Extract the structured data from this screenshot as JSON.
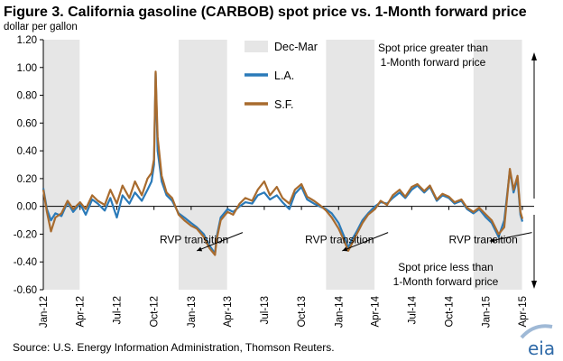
{
  "chart_data": {
    "type": "line",
    "title": "Figure 3. California gasoline (CARBOB) spot price vs. 1-Month forward price",
    "ylabel": "dollar per gallon",
    "xlabel": "",
    "ylim": [
      -0.6,
      1.2
    ],
    "yticks": [
      "1.20",
      "1.00",
      "0.80",
      "0.60",
      "0.40",
      "0.20",
      "0.00",
      "-0.20",
      "-0.40",
      "-0.60"
    ],
    "x_range": [
      "2012-01-01",
      "2015-04-30"
    ],
    "xticks": [
      {
        "label": "Jan-12",
        "date": "2012-01-01"
      },
      {
        "label": "Apr-12",
        "date": "2012-04-01"
      },
      {
        "label": "Jul-12",
        "date": "2012-07-01"
      },
      {
        "label": "Oct-12",
        "date": "2012-10-01"
      },
      {
        "label": "Jan-13",
        "date": "2013-01-01"
      },
      {
        "label": "Apr-13",
        "date": "2013-04-01"
      },
      {
        "label": "Jul-13",
        "date": "2013-07-01"
      },
      {
        "label": "Oct-13",
        "date": "2013-10-01"
      },
      {
        "label": "Jan-14",
        "date": "2014-01-01"
      },
      {
        "label": "Apr-14",
        "date": "2014-04-01"
      },
      {
        "label": "Jul-14",
        "date": "2014-07-01"
      },
      {
        "label": "Oct-14",
        "date": "2014-10-01"
      },
      {
        "label": "Jan-15",
        "date": "2015-01-01"
      },
      {
        "label": "Apr-15",
        "date": "2015-04-01"
      }
    ],
    "shaded_periods": [
      {
        "start": "2012-01-01",
        "end": "2012-03-31"
      },
      {
        "start": "2012-12-01",
        "end": "2013-03-31"
      },
      {
        "start": "2013-12-01",
        "end": "2014-03-31"
      },
      {
        "start": "2014-12-01",
        "end": "2015-03-31"
      }
    ],
    "shaded_label": "Dec-Mar",
    "shaded_color": "#e6e6e6",
    "legend_placement": "upper-left inside plot",
    "grid": false,
    "series": [
      {
        "name": "L.A.",
        "color": "#2a7ab9",
        "points": [
          [
            "2012-01-01",
            0.13
          ],
          [
            "2012-01-10",
            -0.02
          ],
          [
            "2012-01-20",
            -0.1
          ],
          [
            "2012-01-31",
            -0.05
          ],
          [
            "2012-02-15",
            -0.07
          ],
          [
            "2012-03-01",
            0.03
          ],
          [
            "2012-03-15",
            -0.04
          ],
          [
            "2012-04-01",
            0.02
          ],
          [
            "2012-04-15",
            -0.06
          ],
          [
            "2012-05-01",
            0.05
          ],
          [
            "2012-05-15",
            0.02
          ],
          [
            "2012-06-01",
            -0.03
          ],
          [
            "2012-06-15",
            0.06
          ],
          [
            "2012-07-01",
            -0.08
          ],
          [
            "2012-07-15",
            0.08
          ],
          [
            "2012-08-01",
            0.02
          ],
          [
            "2012-08-15",
            0.1
          ],
          [
            "2012-09-01",
            0.04
          ],
          [
            "2012-09-15",
            0.12
          ],
          [
            "2012-09-25",
            0.18
          ],
          [
            "2012-10-01",
            0.3
          ],
          [
            "2012-10-05",
            0.96
          ],
          [
            "2012-10-10",
            0.4
          ],
          [
            "2012-10-20",
            0.18
          ],
          [
            "2012-11-01",
            0.08
          ],
          [
            "2012-11-15",
            0.04
          ],
          [
            "2012-12-01",
            -0.05
          ],
          [
            "2012-12-15",
            -0.08
          ],
          [
            "2013-01-01",
            -0.12
          ],
          [
            "2013-01-15",
            -0.15
          ],
          [
            "2013-02-01",
            -0.2
          ],
          [
            "2013-02-15",
            -0.28
          ],
          [
            "2013-03-01",
            -0.34
          ],
          [
            "2013-03-05",
            -0.22
          ],
          [
            "2013-03-15",
            -0.08
          ],
          [
            "2013-04-01",
            -0.02
          ],
          [
            "2013-04-15",
            -0.04
          ],
          [
            "2013-05-01",
            0.0
          ],
          [
            "2013-05-15",
            0.03
          ],
          [
            "2013-06-01",
            0.02
          ],
          [
            "2013-06-15",
            0.08
          ],
          [
            "2013-07-01",
            0.1
          ],
          [
            "2013-07-15",
            0.05
          ],
          [
            "2013-08-01",
            0.08
          ],
          [
            "2013-08-15",
            0.03
          ],
          [
            "2013-09-01",
            -0.02
          ],
          [
            "2013-09-15",
            0.09
          ],
          [
            "2013-10-01",
            0.14
          ],
          [
            "2013-10-15",
            0.05
          ],
          [
            "2013-11-01",
            0.02
          ],
          [
            "2013-11-15",
            0.0
          ],
          [
            "2013-12-01",
            -0.02
          ],
          [
            "2013-12-15",
            -0.05
          ],
          [
            "2014-01-01",
            -0.12
          ],
          [
            "2014-01-15",
            -0.22
          ],
          [
            "2014-01-25",
            -0.3
          ],
          [
            "2014-02-01",
            -0.25
          ],
          [
            "2014-02-15",
            -0.18
          ],
          [
            "2014-03-01",
            -0.1
          ],
          [
            "2014-03-15",
            -0.05
          ],
          [
            "2014-04-01",
            0.0
          ],
          [
            "2014-04-15",
            0.03
          ],
          [
            "2014-05-01",
            0.02
          ],
          [
            "2014-05-15",
            0.06
          ],
          [
            "2014-06-01",
            0.1
          ],
          [
            "2014-06-15",
            0.06
          ],
          [
            "2014-07-01",
            0.12
          ],
          [
            "2014-07-15",
            0.15
          ],
          [
            "2014-08-01",
            0.1
          ],
          [
            "2014-08-15",
            0.14
          ],
          [
            "2014-09-01",
            0.04
          ],
          [
            "2014-09-15",
            0.08
          ],
          [
            "2014-10-01",
            0.06
          ],
          [
            "2014-10-15",
            0.02
          ],
          [
            "2014-11-01",
            0.04
          ],
          [
            "2014-11-15",
            -0.02
          ],
          [
            "2014-12-01",
            -0.05
          ],
          [
            "2014-12-15",
            -0.02
          ],
          [
            "2015-01-01",
            -0.08
          ],
          [
            "2015-01-15",
            -0.12
          ],
          [
            "2015-02-01",
            -0.22
          ],
          [
            "2015-02-15",
            -0.1
          ],
          [
            "2015-03-01",
            0.26
          ],
          [
            "2015-03-10",
            0.1
          ],
          [
            "2015-03-20",
            0.2
          ],
          [
            "2015-03-27",
            -0.06
          ],
          [
            "2015-04-01",
            -0.11
          ]
        ]
      },
      {
        "name": "S.F.",
        "color": "#a86b2e",
        "points": [
          [
            "2012-01-01",
            0.12
          ],
          [
            "2012-01-10",
            -0.04
          ],
          [
            "2012-01-20",
            -0.18
          ],
          [
            "2012-01-31",
            -0.08
          ],
          [
            "2012-02-15",
            -0.05
          ],
          [
            "2012-03-01",
            0.04
          ],
          [
            "2012-03-15",
            -0.02
          ],
          [
            "2012-04-01",
            0.03
          ],
          [
            "2012-04-15",
            -0.02
          ],
          [
            "2012-05-01",
            0.08
          ],
          [
            "2012-05-15",
            0.04
          ],
          [
            "2012-06-01",
            0.01
          ],
          [
            "2012-06-15",
            0.12
          ],
          [
            "2012-07-01",
            0.02
          ],
          [
            "2012-07-15",
            0.15
          ],
          [
            "2012-08-01",
            0.06
          ],
          [
            "2012-08-15",
            0.18
          ],
          [
            "2012-09-01",
            0.08
          ],
          [
            "2012-09-15",
            0.2
          ],
          [
            "2012-09-25",
            0.24
          ],
          [
            "2012-10-01",
            0.34
          ],
          [
            "2012-10-05",
            0.97
          ],
          [
            "2012-10-10",
            0.5
          ],
          [
            "2012-10-20",
            0.22
          ],
          [
            "2012-11-01",
            0.1
          ],
          [
            "2012-11-15",
            0.06
          ],
          [
            "2012-12-01",
            -0.06
          ],
          [
            "2012-12-15",
            -0.1
          ],
          [
            "2013-01-01",
            -0.14
          ],
          [
            "2013-01-15",
            -0.16
          ],
          [
            "2013-02-01",
            -0.22
          ],
          [
            "2013-02-15",
            -0.3
          ],
          [
            "2013-03-01",
            -0.35
          ],
          [
            "2013-03-05",
            -0.24
          ],
          [
            "2013-03-15",
            -0.1
          ],
          [
            "2013-04-01",
            -0.04
          ],
          [
            "2013-04-15",
            -0.06
          ],
          [
            "2013-05-01",
            0.02
          ],
          [
            "2013-05-15",
            0.06
          ],
          [
            "2013-06-01",
            0.04
          ],
          [
            "2013-06-15",
            0.12
          ],
          [
            "2013-07-01",
            0.18
          ],
          [
            "2013-07-15",
            0.08
          ],
          [
            "2013-08-01",
            0.14
          ],
          [
            "2013-08-15",
            0.06
          ],
          [
            "2013-09-01",
            0.02
          ],
          [
            "2013-09-15",
            0.12
          ],
          [
            "2013-10-01",
            0.16
          ],
          [
            "2013-10-15",
            0.07
          ],
          [
            "2013-11-01",
            0.04
          ],
          [
            "2013-11-15",
            0.01
          ],
          [
            "2013-12-01",
            -0.03
          ],
          [
            "2013-12-15",
            -0.08
          ],
          [
            "2014-01-01",
            -0.16
          ],
          [
            "2014-01-15",
            -0.25
          ],
          [
            "2014-01-25",
            -0.32
          ],
          [
            "2014-02-01",
            -0.28
          ],
          [
            "2014-02-15",
            -0.2
          ],
          [
            "2014-03-01",
            -0.12
          ],
          [
            "2014-03-15",
            -0.06
          ],
          [
            "2014-04-01",
            -0.02
          ],
          [
            "2014-04-15",
            0.04
          ],
          [
            "2014-05-01",
            0.01
          ],
          [
            "2014-05-15",
            0.08
          ],
          [
            "2014-06-01",
            0.12
          ],
          [
            "2014-06-15",
            0.07
          ],
          [
            "2014-07-01",
            0.14
          ],
          [
            "2014-07-15",
            0.16
          ],
          [
            "2014-08-01",
            0.11
          ],
          [
            "2014-08-15",
            0.15
          ],
          [
            "2014-09-01",
            0.05
          ],
          [
            "2014-09-15",
            0.09
          ],
          [
            "2014-10-01",
            0.07
          ],
          [
            "2014-10-15",
            0.03
          ],
          [
            "2014-11-01",
            0.05
          ],
          [
            "2014-11-15",
            -0.01
          ],
          [
            "2014-12-01",
            -0.04
          ],
          [
            "2014-12-15",
            -0.01
          ],
          [
            "2015-01-01",
            -0.06
          ],
          [
            "2015-01-15",
            -0.1
          ],
          [
            "2015-02-01",
            -0.2
          ],
          [
            "2015-02-15",
            -0.15
          ],
          [
            "2015-03-01",
            0.27
          ],
          [
            "2015-03-10",
            0.12
          ],
          [
            "2015-03-20",
            0.22
          ],
          [
            "2015-03-27",
            -0.04
          ],
          [
            "2015-04-01",
            -0.09
          ]
        ]
      }
    ],
    "annotations": [
      {
        "text": "RVP transition",
        "x": "2012-10-15",
        "y": -0.24,
        "arrow_to": [
          "2013-01-15",
          -0.32
        ]
      },
      {
        "text": "RVP transition",
        "x": "2013-10-10",
        "y": -0.24,
        "arrow_to": [
          "2014-01-10",
          -0.32
        ]
      },
      {
        "text": "RVP transition",
        "x": "2014-10-01",
        "y": -0.24,
        "arrow_to": [
          "2015-01-10",
          -0.25
        ]
      }
    ],
    "notes": {
      "above": [
        "Spot price greater than",
        "1-Month forward price"
      ],
      "below": [
        "Spot price less than",
        "1-Month forward price"
      ]
    }
  },
  "footer": {
    "source": "Source:  U.S. Energy Information Administration, Thomson Reuters.",
    "logo": "eia"
  }
}
